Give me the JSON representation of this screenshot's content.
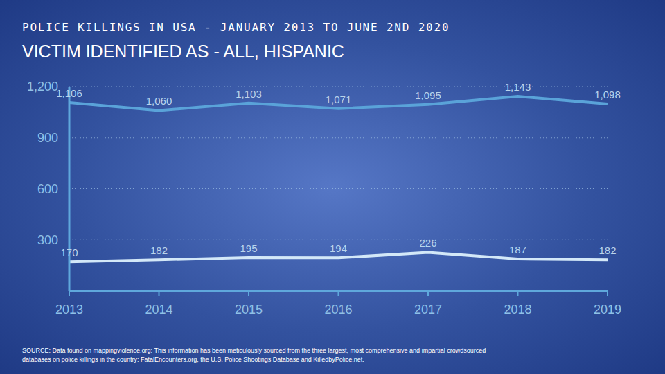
{
  "chart_data": {
    "type": "line",
    "title": "POLICE KILLINGS IN USA - JANUARY 2013 TO JUNE 2ND 2020",
    "subtitle": "VICTIM IDENTIFIED AS - ALL, HISPANIC",
    "source": "SOURCE: Data found on mappingviolence.org: This information has been meticulously sourced from the three largest, most comprehensive and impartial crowdsourced databases on police killings in the country: FatalEncounters.org, the U.S. Police Shootings Database and KilledbyPolice.net.",
    "categories": [
      "2013",
      "2014",
      "2015",
      "2016",
      "2017",
      "2018",
      "2019"
    ],
    "series": [
      {
        "color": "#5aa3d9",
        "values": [
          1106,
          1060,
          1103,
          1071,
          1095,
          1143,
          1098
        ],
        "value_labels": [
          "1,106",
          "1,060",
          "1,103",
          "1,071",
          "1,095",
          "1,143",
          "1,098"
        ]
      },
      {
        "color": "#d3e8f8",
        "values": [
          170,
          182,
          195,
          194,
          226,
          187,
          182
        ]
      }
    ],
    "ylim": [
      0,
      1200
    ],
    "yticks": [
      300,
      600,
      900,
      {
        "value": 1200,
        "label": "1,200"
      }
    ],
    "grid": true,
    "data_labels": true
  }
}
